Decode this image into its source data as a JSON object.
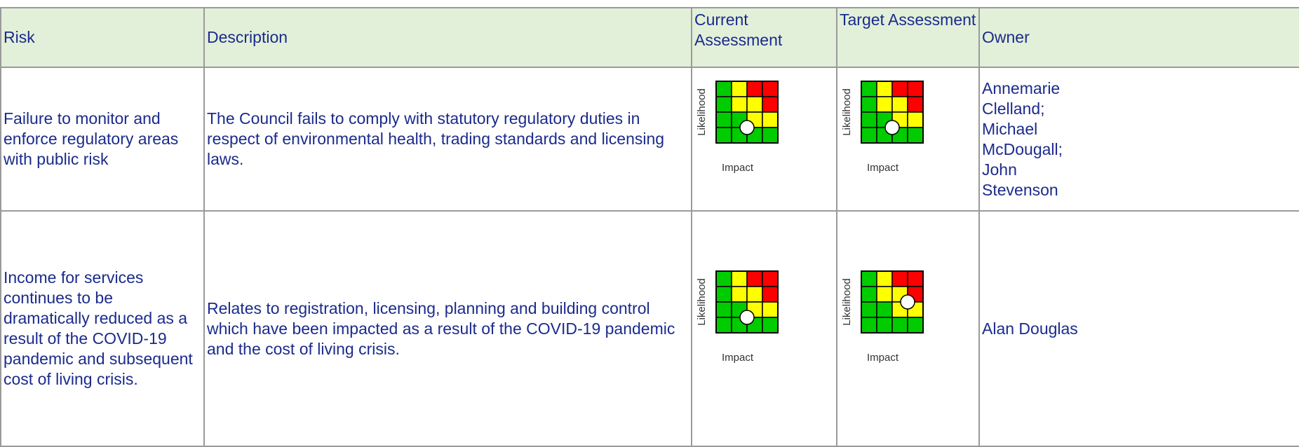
{
  "table": {
    "header": [
      "Risk",
      "Description",
      "Current Assessment",
      "Target Assessment",
      "Owner"
    ],
    "matrix_labels": {
      "likelihood": "Likelihood",
      "impact": "Impact"
    },
    "rows": [
      {
        "risk": "Failure  to monitor and enforce regulatory areas with public risk",
        "description": "The Council fails to comply with statutory regulatory duties in respect of environmental health, trading standards and licensing laws.",
        "current": {
          "likelihood": 2,
          "impact": 2
        },
        "target": {
          "likelihood": 2,
          "impact": 2
        },
        "owner": "Annemarie Clelland; Michael McDougall; John Stevenson"
      },
      {
        "risk": "Income for services continues to be dramatically reduced as a result of the COVID-19 pandemic and subsequent cost of living crisis.",
        "description": "Relates to registration, licensing, planning and building control which have been impacted as a result of the COVID-19 pandemic and the cost of living crisis.",
        "current": {
          "likelihood": 2,
          "impact": 2
        },
        "target": {
          "likelihood": 3,
          "impact": 3
        },
        "owner": "Alan Douglas"
      }
    ]
  }
}
